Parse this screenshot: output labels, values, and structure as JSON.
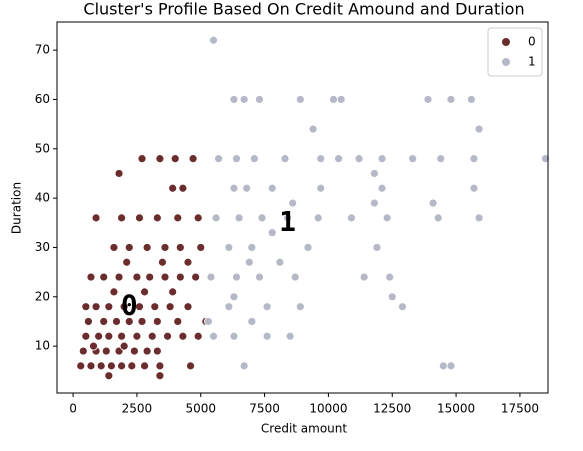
{
  "chart_data": {
    "type": "scatter",
    "title": "Cluster's Profile Based On Credit Amound and Duration",
    "x_label": "Credit amount",
    "y_label": "Duration",
    "xlim": [
      -630,
      18600
    ],
    "ylim": [
      0.5,
      75.7
    ],
    "xticks": [
      0,
      2500,
      5000,
      7500,
      10000,
      12500,
      15000,
      17500
    ],
    "yticks": [
      10,
      20,
      30,
      40,
      50,
      60,
      70
    ],
    "legend": "upper right",
    "annotations": [
      {
        "text": "0",
        "x": 2200,
        "y": 18
      },
      {
        "text": "1",
        "x": 8400,
        "y": 35
      }
    ],
    "series": [
      {
        "name": "0",
        "color": "#6b2c2e",
        "x": [
          300,
          700,
          1100,
          1500,
          1900,
          2300,
          2800,
          3400,
          4600,
          400,
          900,
          1300,
          1800,
          2400,
          2900,
          3300,
          500,
          1000,
          1400,
          1900,
          2500,
          3100,
          3700,
          4300,
          4900,
          600,
          1200,
          1700,
          2200,
          2700,
          3300,
          4100,
          5200,
          500,
          900,
          1400,
          2000,
          2600,
          3200,
          3800,
          4500,
          1600,
          2800,
          3900,
          700,
          1200,
          1800,
          2500,
          3000,
          3600,
          4200,
          4800,
          2100,
          3500,
          4500,
          1600,
          2200,
          2900,
          3600,
          4200,
          5000,
          900,
          1900,
          2600,
          3300,
          4100,
          4900,
          3900,
          4300,
          1800,
          2700,
          3400,
          4000,
          4700,
          1400,
          3400,
          800,
          2000
        ],
        "values": [
          6,
          6,
          6,
          6,
          6,
          6,
          6,
          6,
          6,
          9,
          9,
          9,
          9,
          9,
          9,
          9,
          12,
          12,
          12,
          12,
          12,
          12,
          12,
          12,
          12,
          15,
          15,
          15,
          15,
          15,
          15,
          15,
          15,
          18,
          18,
          18,
          18,
          18,
          18,
          18,
          18,
          21,
          21,
          21,
          24,
          24,
          24,
          24,
          24,
          24,
          24,
          24,
          27,
          27,
          27,
          30,
          30,
          30,
          30,
          30,
          30,
          36,
          36,
          36,
          36,
          36,
          36,
          42,
          42,
          45,
          48,
          48,
          48,
          48,
          4,
          4,
          10,
          10
        ]
      },
      {
        "name": "1",
        "color": "#b5b8c6",
        "x": [
          6700,
          14500,
          14800,
          5500,
          6300,
          7600,
          8500,
          5300,
          7000,
          6100,
          7600,
          8900,
          12900,
          6300,
          12500,
          5400,
          6400,
          7300,
          8700,
          11400,
          12400,
          6900,
          8100,
          6100,
          7000,
          9200,
          11900,
          7800,
          5600,
          6500,
          7400,
          8400,
          9600,
          10900,
          12300,
          14300,
          15900,
          8600,
          11800,
          14100,
          6300,
          6800,
          7800,
          9700,
          12100,
          15700,
          11800,
          5700,
          6400,
          7100,
          8300,
          9700,
          10400,
          11200,
          12100,
          13300,
          14400,
          15700,
          18500,
          9400,
          15900,
          6300,
          6700,
          7300,
          8900,
          10200,
          10500,
          13900,
          14800,
          15600,
          5500
        ],
        "values": [
          6,
          6,
          6,
          12,
          12,
          12,
          12,
          15,
          15,
          18,
          18,
          18,
          18,
          20,
          20,
          24,
          24,
          24,
          24,
          24,
          24,
          27,
          27,
          30,
          30,
          30,
          30,
          33,
          36,
          36,
          36,
          36,
          36,
          36,
          36,
          36,
          36,
          39,
          39,
          39,
          42,
          42,
          42,
          42,
          42,
          42,
          45,
          48,
          48,
          48,
          48,
          48,
          48,
          48,
          48,
          48,
          48,
          48,
          48,
          54,
          54,
          60,
          60,
          60,
          60,
          60,
          60,
          60,
          60,
          60,
          72
        ]
      }
    ]
  }
}
